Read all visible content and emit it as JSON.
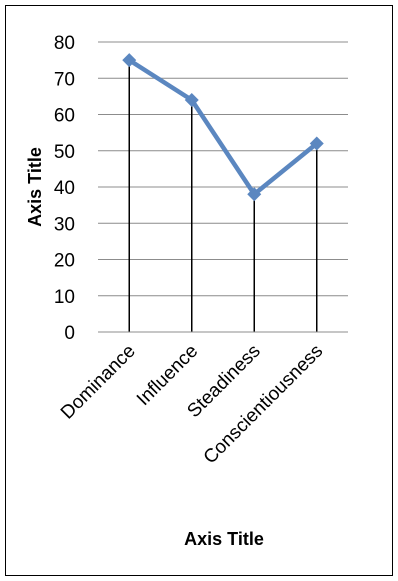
{
  "chart_data": {
    "type": "line",
    "categories": [
      "Dominance",
      "Influence",
      "Steadiness",
      "Conscientiousness"
    ],
    "series": [
      {
        "values": [
          75,
          64,
          38,
          52
        ],
        "color": "#5b87c0"
      }
    ],
    "xlabel": "Axis Title",
    "ylabel": "Axis Title",
    "ylim": [
      0,
      80
    ],
    "yticks": [
      "0",
      "10",
      "20",
      "30",
      "40",
      "50",
      "60",
      "70",
      "80"
    ],
    "grid": true,
    "drop_lines": true,
    "marker": "diamond"
  }
}
